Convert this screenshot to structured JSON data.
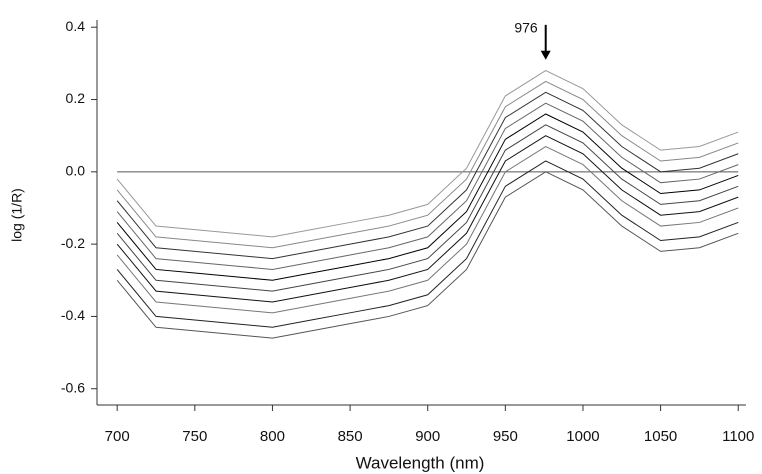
{
  "chart_data": {
    "type": "line",
    "x_label": "Wavelength (nm)",
    "y_label": "log (1/R)",
    "x": [
      700,
      725,
      750,
      775,
      800,
      825,
      850,
      875,
      900,
      925,
      950,
      976,
      1000,
      1025,
      1050,
      1075,
      1100
    ],
    "series": [
      {
        "color": "#555555",
        "values": [
          -0.3,
          -0.43,
          -0.44,
          -0.45,
          -0.46,
          -0.44,
          -0.42,
          -0.4,
          -0.37,
          -0.27,
          -0.07,
          0.0,
          -0.05,
          -0.15,
          -0.22,
          -0.21,
          -0.17
        ]
      },
      {
        "color": "#222222",
        "values": [
          -0.27,
          -0.4,
          -0.41,
          -0.42,
          -0.43,
          -0.41,
          -0.39,
          -0.37,
          -0.34,
          -0.24,
          -0.04,
          0.03,
          -0.02,
          -0.12,
          -0.19,
          -0.18,
          -0.14
        ]
      },
      {
        "color": "#777777",
        "values": [
          -0.23,
          -0.36,
          -0.37,
          -0.38,
          -0.39,
          -0.37,
          -0.35,
          -0.33,
          -0.3,
          -0.2,
          0.0,
          0.07,
          0.02,
          -0.08,
          -0.15,
          -0.14,
          -0.1
        ]
      },
      {
        "color": "#111111",
        "values": [
          -0.2,
          -0.33,
          -0.34,
          -0.35,
          -0.36,
          -0.34,
          -0.32,
          -0.3,
          -0.27,
          -0.17,
          0.03,
          0.1,
          0.05,
          -0.05,
          -0.12,
          -0.11,
          -0.07
        ]
      },
      {
        "color": "#444444",
        "values": [
          -0.17,
          -0.3,
          -0.31,
          -0.32,
          -0.33,
          -0.31,
          -0.29,
          -0.27,
          -0.24,
          -0.14,
          0.06,
          0.13,
          0.08,
          -0.02,
          -0.09,
          -0.08,
          -0.04
        ]
      },
      {
        "color": "#000000",
        "values": [
          -0.14,
          -0.27,
          -0.28,
          -0.29,
          -0.3,
          -0.28,
          -0.26,
          -0.24,
          -0.21,
          -0.11,
          0.09,
          0.16,
          0.11,
          0.01,
          -0.06,
          -0.05,
          -0.01
        ]
      },
      {
        "color": "#666666",
        "values": [
          -0.11,
          -0.24,
          -0.25,
          -0.26,
          -0.27,
          -0.25,
          -0.23,
          -0.21,
          -0.18,
          -0.08,
          0.12,
          0.19,
          0.14,
          0.04,
          -0.03,
          -0.02,
          0.02
        ]
      },
      {
        "color": "#333333",
        "values": [
          -0.08,
          -0.21,
          -0.22,
          -0.23,
          -0.24,
          -0.22,
          -0.2,
          -0.18,
          -0.15,
          -0.05,
          0.15,
          0.22,
          0.17,
          0.07,
          0.0,
          0.01,
          0.05
        ]
      },
      {
        "color": "#888888",
        "values": [
          -0.05,
          -0.18,
          -0.19,
          -0.2,
          -0.21,
          -0.19,
          -0.17,
          -0.15,
          -0.12,
          -0.02,
          0.18,
          0.25,
          0.2,
          0.1,
          0.03,
          0.04,
          0.08
        ]
      },
      {
        "color": "#999999",
        "values": [
          -0.02,
          -0.15,
          -0.16,
          -0.17,
          -0.18,
          -0.16,
          -0.14,
          -0.12,
          -0.09,
          0.01,
          0.21,
          0.28,
          0.23,
          0.13,
          0.06,
          0.07,
          0.11
        ]
      }
    ],
    "hline": 0,
    "annotation": {
      "text": "976",
      "x": 976,
      "y": 0.39,
      "arrow_y": 0.31
    },
    "xlim": [
      687,
      1105
    ],
    "ylim": [
      -0.645,
      0.42
    ],
    "xticks": [
      700,
      750,
      800,
      850,
      900,
      950,
      1000,
      1050,
      1100
    ],
    "yticks": [
      {
        "value": -0.6,
        "label": "-0.6"
      },
      -0.4,
      -0.2,
      {
        "value": 0,
        "label": "0.0"
      },
      0.2,
      0.4
    ],
    "grid": false
  }
}
